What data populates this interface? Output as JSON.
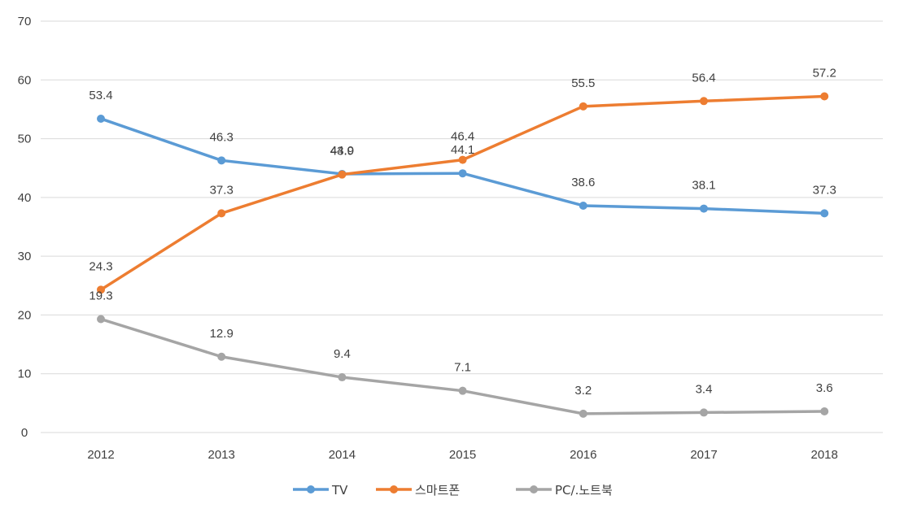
{
  "chart_data": {
    "type": "line",
    "categories": [
      "2012",
      "2013",
      "2014",
      "2015",
      "2016",
      "2017",
      "2018"
    ],
    "ylim": [
      0,
      70
    ],
    "yticks": [
      "0",
      "10",
      "20",
      "30",
      "40",
      "50",
      "60",
      "70"
    ],
    "grid": true,
    "legend_position": "bottom",
    "series": [
      {
        "name": "TV",
        "color": "#5b9bd5",
        "values": [
          53.4,
          46.3,
          44.0,
          44.1,
          38.6,
          38.1,
          37.3
        ],
        "labels": [
          "53.4",
          "46.3",
          "44.0",
          "44.1",
          "38.6",
          "38.1",
          "37.3"
        ]
      },
      {
        "name": "스마트폰",
        "color": "#ed7d31",
        "values": [
          24.3,
          37.3,
          43.9,
          46.4,
          55.5,
          56.4,
          57.2
        ],
        "labels": [
          "24.3",
          "37.3",
          "43.9",
          "46.4",
          "55.5",
          "56.4",
          "57.2"
        ]
      },
      {
        "name": "PC/.노트북",
        "color": "#a5a5a5",
        "values": [
          19.3,
          12.9,
          9.4,
          7.1,
          3.2,
          3.4,
          3.6
        ],
        "labels": [
          "19.3",
          "12.9",
          "9.4",
          "7.1",
          "3.2",
          "3.4",
          "3.6"
        ]
      }
    ]
  }
}
